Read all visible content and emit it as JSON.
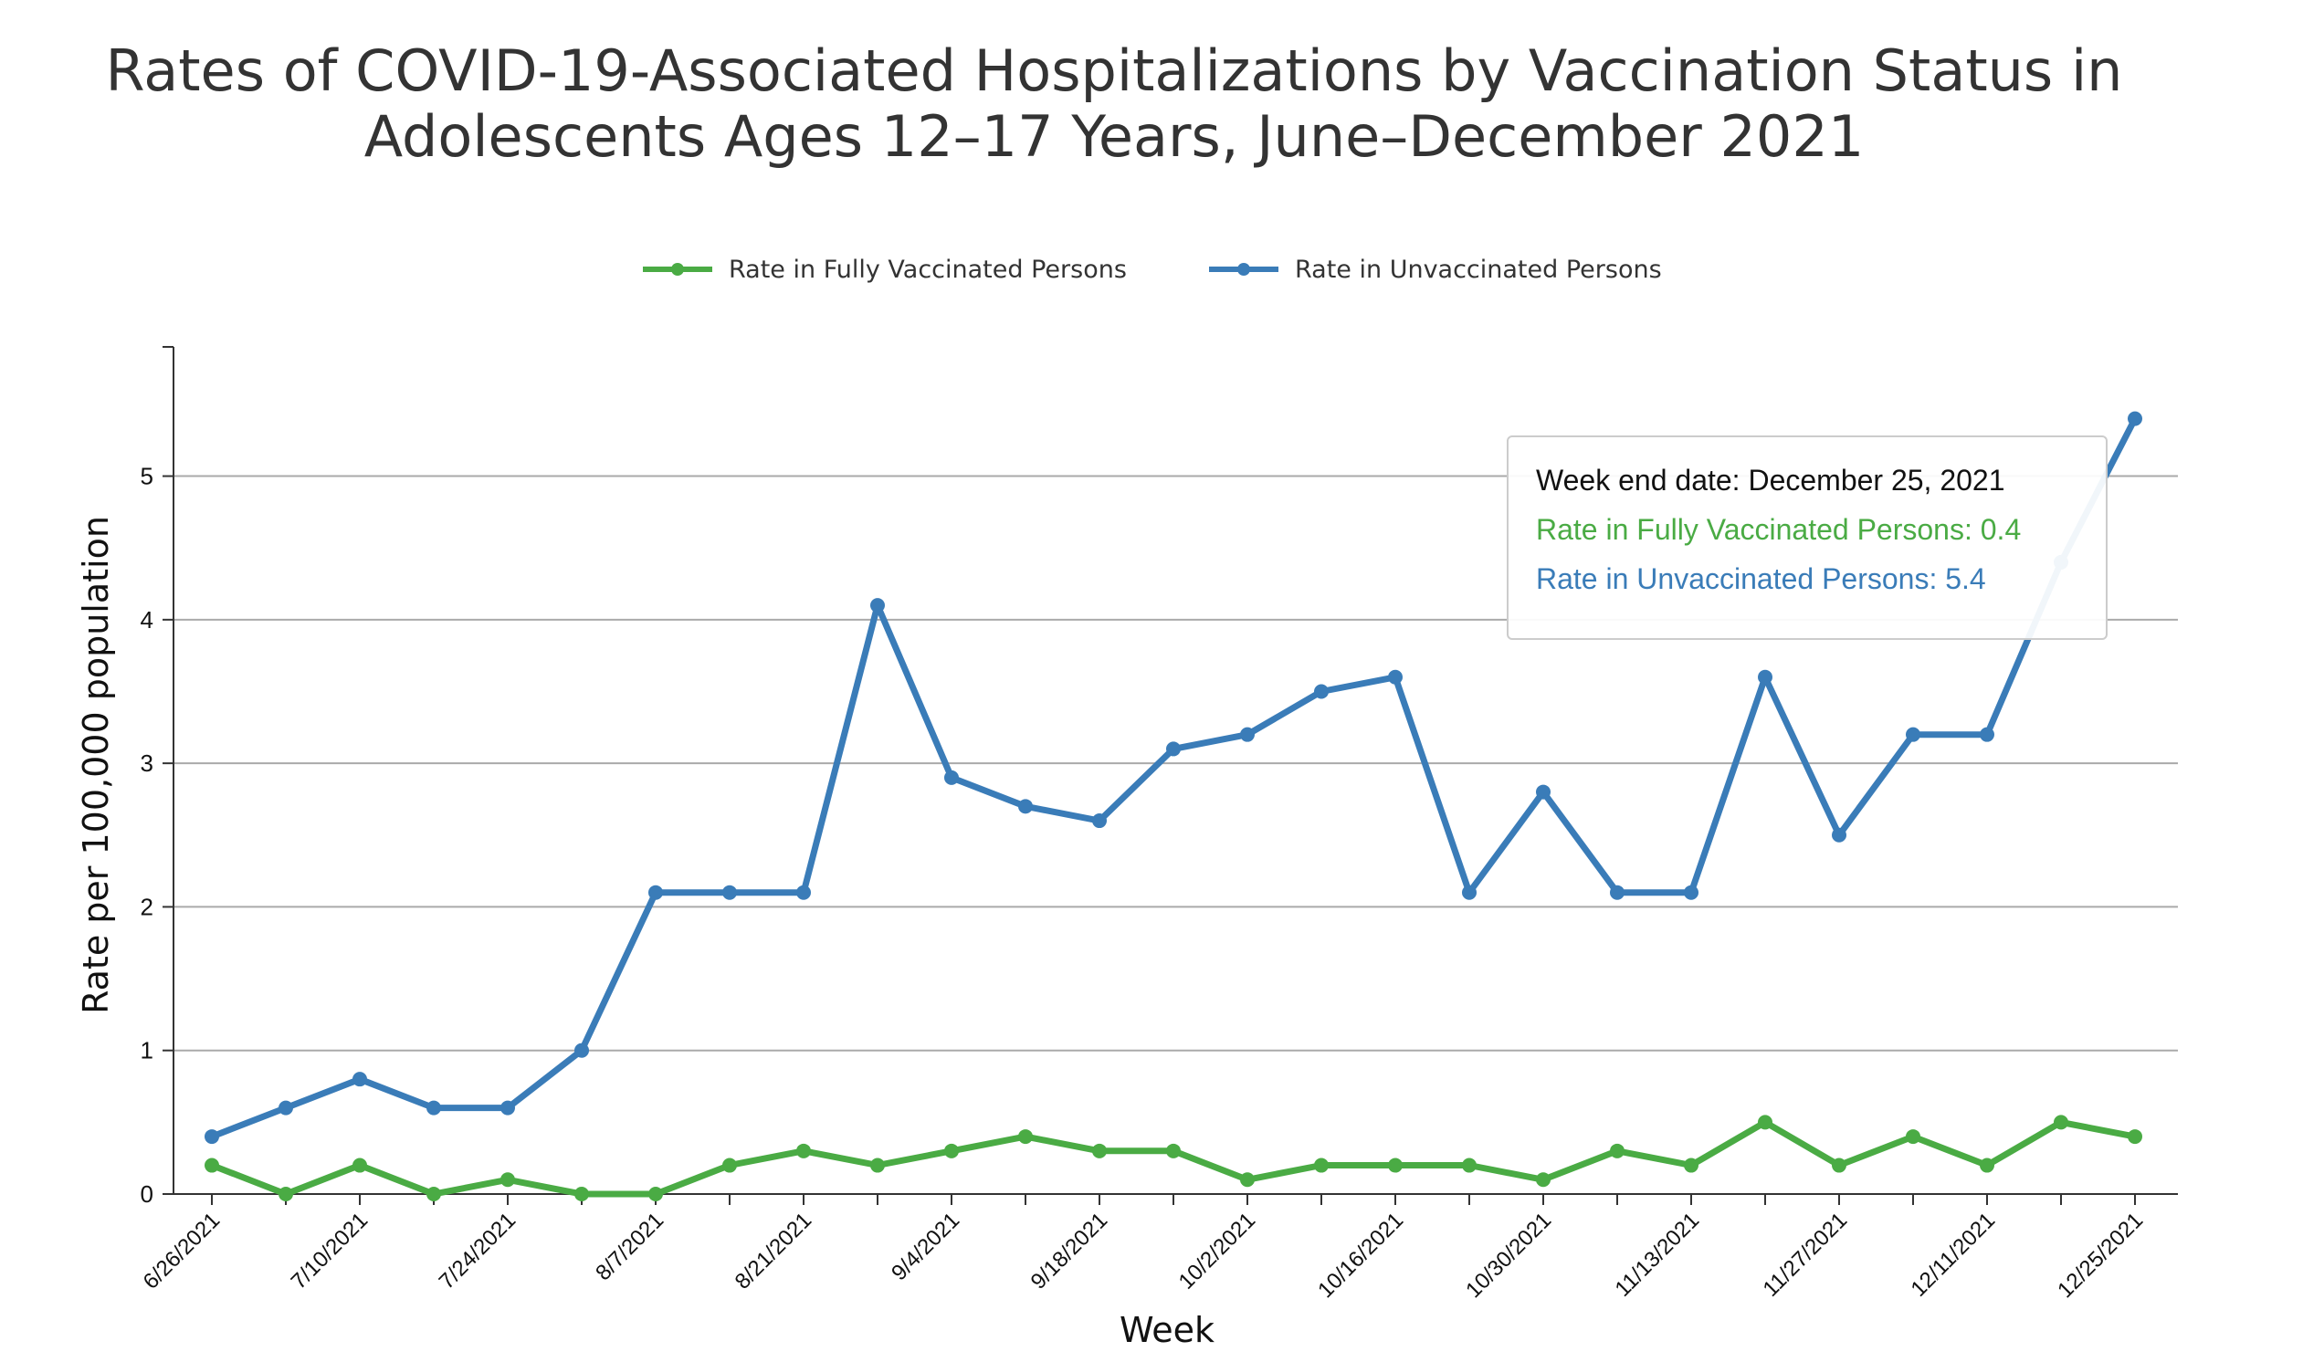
{
  "chart_data": {
    "type": "line",
    "title": "Rates of COVID-19-Associated Hospitalizations by Vaccination Status in Adolescents Ages 12–17 Years, June–December 2021",
    "xlabel": "Week",
    "ylabel": "Rate per 100,000 population",
    "x": [
      "6/26/2021",
      "7/3/2021",
      "7/10/2021",
      "7/17/2021",
      "7/24/2021",
      "7/31/2021",
      "8/7/2021",
      "8/14/2021",
      "8/21/2021",
      "8/28/2021",
      "9/4/2021",
      "9/11/2021",
      "9/18/2021",
      "9/25/2021",
      "10/2/2021",
      "10/9/2021",
      "10/16/2021",
      "10/23/2021",
      "10/30/2021",
      "11/6/2021",
      "11/13/2021",
      "11/20/2021",
      "11/27/2021",
      "12/4/2021",
      "12/11/2021",
      "12/18/2021",
      "12/25/2021"
    ],
    "x_tick_labels": [
      "6/26/2021",
      "7/10/2021",
      "7/24/2021",
      "8/7/2021",
      "8/21/2021",
      "9/4/2021",
      "9/18/2021",
      "10/2/2021",
      "10/16/2021",
      "10/30/2021",
      "11/13/2021",
      "11/27/2021",
      "12/11/2021",
      "12/25/2021"
    ],
    "ylim": [
      0,
      5.9
    ],
    "y_ticks": [
      0,
      1,
      2,
      3,
      4,
      5
    ],
    "grid": true,
    "legend_position": "top",
    "series": [
      {
        "name": "Rate in Fully Vaccinated Persons",
        "color": "#4aab44",
        "values": [
          0.2,
          0.0,
          0.2,
          0.0,
          0.1,
          0.0,
          0.0,
          0.2,
          0.3,
          0.2,
          0.3,
          0.4,
          0.3,
          0.3,
          0.1,
          0.2,
          0.2,
          0.2,
          0.1,
          0.3,
          0.2,
          0.5,
          0.2,
          0.4,
          0.2,
          0.5,
          0.4
        ]
      },
      {
        "name": "Rate in Unvaccinated Persons",
        "color": "#3a7cb8",
        "values": [
          0.4,
          0.6,
          0.8,
          0.6,
          0.6,
          1.0,
          2.1,
          2.1,
          2.1,
          4.1,
          2.9,
          2.7,
          2.6,
          3.1,
          3.2,
          3.5,
          3.6,
          2.1,
          2.8,
          2.1,
          2.1,
          3.6,
          2.5,
          3.2,
          3.2,
          4.4,
          5.4
        ]
      }
    ]
  },
  "tooltip": {
    "date_line": "Week end date: December 25, 2021",
    "vaccinated_line": "Rate in Fully Vaccinated Persons: 0.4",
    "unvaccinated_line": "Rate in Unvaccinated Persons: 5.4"
  },
  "colors": {
    "vaccinated": "#4aab44",
    "unvaccinated": "#3a7cb8",
    "grid": "#aaaaaa",
    "axis": "#333333"
  }
}
